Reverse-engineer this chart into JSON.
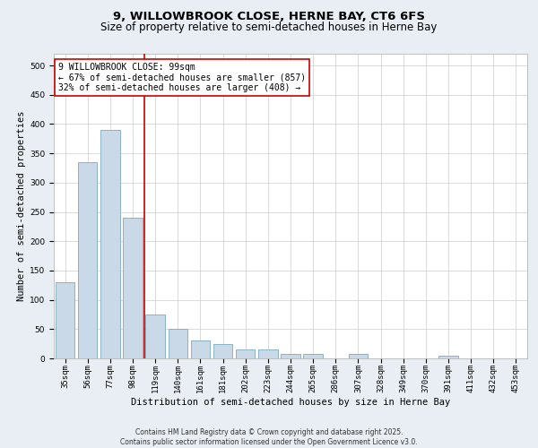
{
  "title": "9, WILLOWBROOK CLOSE, HERNE BAY, CT6 6FS",
  "subtitle": "Size of property relative to semi-detached houses in Herne Bay",
  "xlabel": "Distribution of semi-detached houses by size in Herne Bay",
  "ylabel": "Number of semi-detached properties",
  "categories": [
    "35sqm",
    "56sqm",
    "77sqm",
    "98sqm",
    "119sqm",
    "140sqm",
    "161sqm",
    "181sqm",
    "202sqm",
    "223sqm",
    "244sqm",
    "265sqm",
    "286sqm",
    "307sqm",
    "328sqm",
    "349sqm",
    "370sqm",
    "391sqm",
    "411sqm",
    "432sqm",
    "453sqm"
  ],
  "values": [
    130,
    335,
    390,
    240,
    75,
    50,
    30,
    25,
    15,
    15,
    8,
    8,
    0,
    8,
    0,
    0,
    0,
    5,
    0,
    0,
    0
  ],
  "bar_color": "#c9d9e8",
  "bar_edge_color": "#7aaabe",
  "red_line_index": 3,
  "red_line_color": "#cc0000",
  "annotation_text": "9 WILLOWBROOK CLOSE: 99sqm\n← 67% of semi-detached houses are smaller (857)\n32% of semi-detached houses are larger (408) →",
  "annotation_box_color": "#ffffff",
  "annotation_box_edge": "#cc0000",
  "ylim": [
    0,
    520
  ],
  "yticks": [
    0,
    50,
    100,
    150,
    200,
    250,
    300,
    350,
    400,
    450,
    500
  ],
  "background_color": "#e8eef4",
  "plot_bg_color": "#ffffff",
  "grid_color": "#cccccc",
  "footer": "Contains HM Land Registry data © Crown copyright and database right 2025.\nContains public sector information licensed under the Open Government Licence v3.0.",
  "title_fontsize": 9.5,
  "subtitle_fontsize": 8.5,
  "axis_label_fontsize": 7.5,
  "tick_fontsize": 6.5,
  "annotation_fontsize": 7.0,
  "footer_fontsize": 5.5
}
